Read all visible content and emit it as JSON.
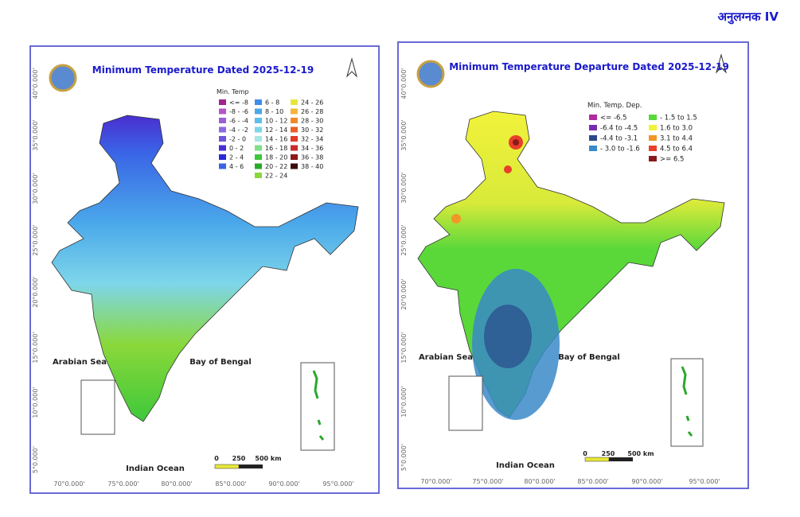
{
  "header": {
    "annexure": "अनुलग्नक IV"
  },
  "maps": [
    {
      "title": "Minimum Temperature Dated 2025-12-19",
      "legend_title": "Min. Temp",
      "legend_columns": [
        [
          {
            "label": "<= -8",
            "color": "#a0248f"
          },
          {
            "label": "-8 - -6",
            "color": "#b455c8"
          },
          {
            "label": "-6 - -4",
            "color": "#9c5fd6"
          },
          {
            "label": "-4 - -2",
            "color": "#8d6ae0"
          },
          {
            "label": "-2 - 0",
            "color": "#7055d8"
          },
          {
            "label": "0 - 2",
            "color": "#4a2ed0"
          },
          {
            "label": "2 - 4",
            "color": "#2a2ad8"
          },
          {
            "label": "4 - 6",
            "color": "#3a64e6"
          }
        ],
        [
          {
            "label": "6 - 8",
            "color": "#3e8ce8"
          },
          {
            "label": "8 - 10",
            "color": "#4aa8ea"
          },
          {
            "label": "10 - 12",
            "color": "#5cc0ec"
          },
          {
            "label": "12 - 14",
            "color": "#7ed6ea"
          },
          {
            "label": "14 - 16",
            "color": "#a6e6e4"
          },
          {
            "label": "16 - 18",
            "color": "#7ee08a"
          },
          {
            "label": "18 - 20",
            "color": "#3ec83a"
          },
          {
            "label": "20 - 22",
            "color": "#2aa82a"
          },
          {
            "label": "22 - 24",
            "color": "#8ad83a"
          }
        ],
        [
          {
            "label": "24 - 26",
            "color": "#e6e63a"
          },
          {
            "label": "26 - 28",
            "color": "#f2b63a"
          },
          {
            "label": "28 - 30",
            "color": "#f08a2a"
          },
          {
            "label": "30 - 32",
            "color": "#e8602a"
          },
          {
            "label": "32 - 34",
            "color": "#e03a2a"
          },
          {
            "label": "34 - 36",
            "color": "#c82a2a"
          },
          {
            "label": "36 - 38",
            "color": "#8a1a1a"
          },
          {
            "label": "38 - 40",
            "color": "#3a0a0a"
          }
        ]
      ],
      "latitudes": [
        "40°0.000'",
        "35°0.000'",
        "30°0.000'",
        "25°0.000'",
        "20°0.000'",
        "15°0.000'",
        "10°0.000'",
        "5°0.000'"
      ],
      "longitudes": [
        "70°0.000'",
        "75°0.000'",
        "80°0.000'",
        "85°0.000'",
        "90°0.000'",
        "95°0.000'"
      ],
      "seas": [
        "Arabian Sea",
        "Bay of Bengal",
        "Indian Ocean"
      ],
      "scale": [
        "0",
        "250",
        "500 km"
      ]
    },
    {
      "title": "Minimum Temperature Departure Dated 2025-12-19",
      "legend_title": "Min. Temp. Dep.",
      "legend_columns": [
        [
          {
            "label": "<= -6.5",
            "color": "#b02aa0"
          },
          {
            "label": "-6.4 to -4.5",
            "color": "#7a2ab0"
          },
          {
            "label": "-4.4 to -3.1",
            "color": "#2a4a8a"
          },
          {
            "label": "- 3.0 to -1.6",
            "color": "#3a8ac8"
          }
        ],
        [
          {
            "label": "- 1.5 to 1.5",
            "color": "#5ad83a"
          },
          {
            "label": "1.6 to  3.0",
            "color": "#f2f23a"
          },
          {
            "label": "3.1 to 4.4",
            "color": "#f2962a"
          },
          {
            "label": "4.5 to 6.4",
            "color": "#e8402a"
          },
          {
            "label": ">= 6.5",
            "color": "#8a1a1a"
          }
        ]
      ],
      "latitudes": [
        "40°0.000'",
        "35°0.000'",
        "30°0.000'",
        "25°0.000'",
        "20°0.000'",
        "15°0.000'",
        "10°0.000'",
        "5°0.000'"
      ],
      "longitudes": [
        "70°0.000'",
        "75°0.000'",
        "80°0.000'",
        "85°0.000'",
        "90°0.000'",
        "95°0.000'"
      ],
      "seas": [
        "Arabian Sea",
        "Bay of Bengal",
        "Indian Ocean"
      ],
      "scale": [
        "0",
        "250",
        "500 km"
      ]
    }
  ]
}
